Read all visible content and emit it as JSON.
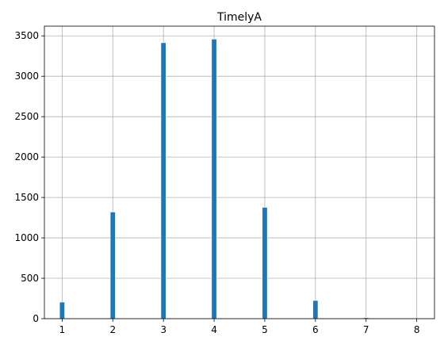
{
  "chart_data": {
    "type": "bar",
    "title": "TimelyA",
    "xlabel": "",
    "ylabel": "",
    "x": [
      1,
      2,
      3,
      4,
      5,
      6,
      7,
      8
    ],
    "values": [
      205,
      1320,
      3415,
      3460,
      1378,
      225,
      12,
      0
    ],
    "xlim": [
      0.65,
      8.35
    ],
    "ylim": [
      0,
      3620
    ],
    "xticks": [
      1,
      2,
      3,
      4,
      5,
      6,
      7,
      8
    ],
    "xtick_labels": [
      "1",
      "2",
      "3",
      "4",
      "5",
      "6",
      "7",
      "8"
    ],
    "yticks": [
      0,
      500,
      1000,
      1500,
      2000,
      2500,
      3000,
      3500
    ],
    "ytick_labels": [
      "0",
      "500",
      "1000",
      "1500",
      "2000",
      "2500",
      "3000",
      "3500"
    ],
    "grid": true,
    "colors": {
      "bar": "#1f77b4",
      "grid": "#b0b0b0",
      "axis": "#000000"
    }
  }
}
